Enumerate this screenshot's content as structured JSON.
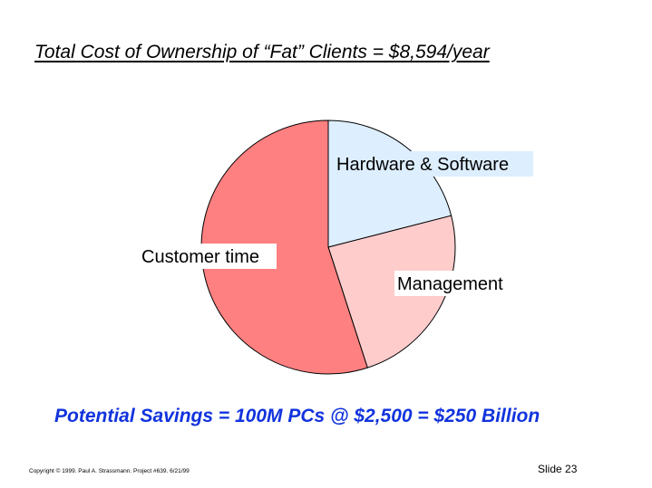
{
  "slide": {
    "title": "Total Cost of Ownership of “Fat” Clients = $8,594/year",
    "savings": "Potential Savings = 100M PCs @ $2,500 = $250 Billion",
    "copyright": "Copyright © 1999.  Paul A. Strassmann. Project #639.      6/21/99",
    "slide_number": "Slide 23"
  },
  "chart_data": {
    "type": "pie",
    "title": "",
    "slices": [
      {
        "label": "Hardware & Software",
        "value": 21,
        "color": "#DDEEFF"
      },
      {
        "label": "Management",
        "value": 24,
        "color": "#FFCCCC"
      },
      {
        "label": "Customer time",
        "value": 55,
        "color": "#FF8080"
      }
    ]
  }
}
